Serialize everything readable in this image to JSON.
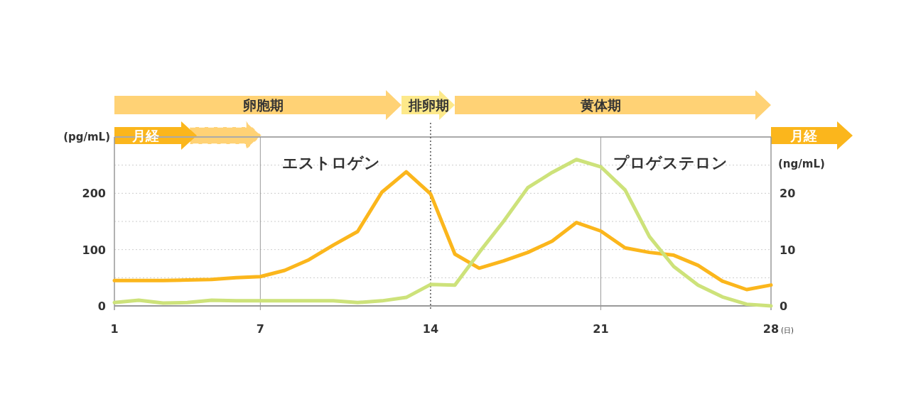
{
  "chart_data": {
    "type": "line",
    "x": [
      1,
      2,
      3,
      4,
      5,
      6,
      7,
      8,
      9,
      10,
      11,
      12,
      13,
      14,
      15,
      16,
      17,
      18,
      19,
      20,
      21,
      22,
      23,
      24,
      25,
      26,
      27,
      28
    ],
    "series": [
      {
        "name": "エストロゲン",
        "color": "#fbb61c",
        "values": [
          45,
          45,
          45,
          46,
          47,
          50,
          52,
          63,
          82,
          108,
          132,
          202,
          238,
          199,
          92,
          67,
          80,
          95,
          115,
          148,
          133,
          103,
          95,
          90,
          72,
          44,
          29,
          37
        ]
      },
      {
        "name": "プロゲステロン",
        "color": "#cde27a",
        "axis": "y2",
        "values": [
          0.6,
          1.0,
          0.5,
          0.6,
          1.0,
          0.9,
          0.9,
          0.9,
          0.9,
          0.9,
          0.6,
          0.9,
          1.5,
          3.8,
          3.7,
          9.5,
          15,
          21,
          23.7,
          26,
          24.7,
          20.6,
          12.3,
          7,
          3.7,
          1.6,
          0.3,
          0
        ]
      }
    ],
    "xlim": [
      1,
      28
    ],
    "xticks": [
      1,
      7,
      14,
      21,
      28
    ],
    "xlabel": "(日)",
    "ylim": [
      0,
      300
    ],
    "yticks": [
      0,
      {
        "value": 50,
        "label": null
      },
      100,
      {
        "value": 150,
        "label": null
      },
      200,
      {
        "value": 250,
        "label": null
      }
    ],
    "y2lim": [
      0,
      30
    ],
    "y2ticks": [
      0,
      10,
      20
    ],
    "ylabel": "(pg/mL)",
    "y2label": "(ng/mL)",
    "grid": "y",
    "marker": "none",
    "line_style": "solid",
    "ref_lines": [
      {
        "axis": "x",
        "value": 7,
        "color": "#999999",
        "line_style": "solid"
      },
      {
        "axis": "x",
        "value": 14,
        "color": "#555555",
        "line_style": "dotted"
      },
      {
        "axis": "x",
        "value": 21,
        "color": "#999999",
        "line_style": "solid"
      }
    ],
    "annotations": [
      "卵胞期",
      "排卵期",
      "黄体期",
      "月経",
      "月経"
    ]
  }
}
